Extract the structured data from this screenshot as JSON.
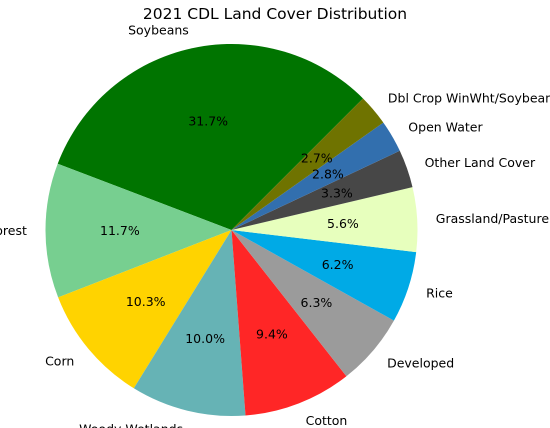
{
  "chart_data": {
    "type": "pie",
    "title": "2021 CDL Land Cover Distribution",
    "slices": [
      {
        "label": "Soybeans",
        "value": 31.7,
        "pct_label": "31.7%",
        "color": "#007400"
      },
      {
        "label": "Forest",
        "value": 11.7,
        "pct_label": "11.7%",
        "color": "#77cf90"
      },
      {
        "label": "Corn",
        "value": 10.3,
        "pct_label": "10.3%",
        "color": "#ffd300"
      },
      {
        "label": "Woody Wetlands",
        "value": 10.0,
        "pct_label": "10.0%",
        "color": "#66b3b5"
      },
      {
        "label": "Cotton",
        "value": 9.4,
        "pct_label": "9.4%",
        "color": "#ff2626"
      },
      {
        "label": "Developed",
        "value": 6.3,
        "pct_label": "6.3%",
        "color": "#9b9b9b"
      },
      {
        "label": "Rice",
        "value": 6.2,
        "pct_label": "6.2%",
        "color": "#00aae6"
      },
      {
        "label": "Grassland/Pasture",
        "value": 5.6,
        "pct_label": "5.6%",
        "color": "#e7ffbd"
      },
      {
        "label": "Other Land Cover",
        "value": 3.3,
        "pct_label": "3.3%",
        "color": "#474747"
      },
      {
        "label": "Open Water",
        "value": 2.8,
        "pct_label": "2.8%",
        "color": "#326fae"
      },
      {
        "label": "Dbl Crop WinWht/Soybeans",
        "value": 2.7,
        "pct_label": "2.7%",
        "color": "#6f7300"
      }
    ]
  }
}
